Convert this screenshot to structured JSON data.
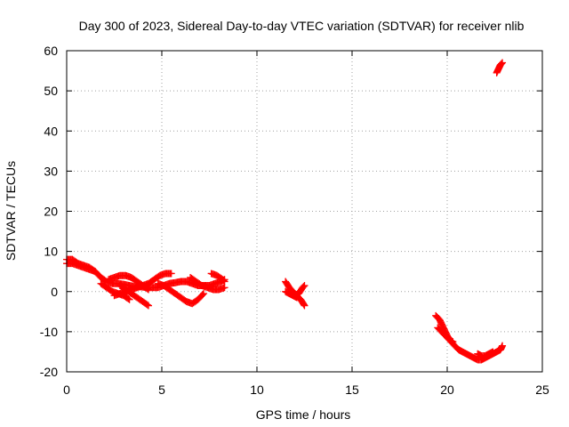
{
  "chart_data": {
    "type": "scatter",
    "title": "Day 300 of 2023, Sidereal Day-to-day VTEC variation (SDTVAR) for receiver nlib",
    "xlabel": "GPS time / hours",
    "ylabel": "SDTVAR / TECUs",
    "xlim": [
      0,
      25
    ],
    "ylim": [
      -20,
      60
    ],
    "xticks": [
      0,
      5,
      10,
      15,
      20,
      25
    ],
    "yticks": [
      -20,
      -10,
      0,
      10,
      20,
      30,
      40,
      50,
      60
    ],
    "grid": true,
    "marker": "+",
    "series": [
      {
        "name": "SDTVAR",
        "color": "#ff0000",
        "tracks": [
          {
            "x": [
              0.0,
              0.3,
              0.6,
              0.9,
              1.2,
              1.5,
              1.8,
              2.1,
              2.4,
              2.7,
              3.0,
              3.3,
              3.6,
              3.9,
              4.2,
              4.5,
              4.8,
              5.1,
              5.4,
              5.7,
              6.0,
              6.3,
              6.6,
              6.9,
              7.2,
              7.5,
              7.8,
              8.1,
              8.3
            ],
            "y": [
              8,
              8,
              7,
              6.5,
              6,
              5,
              3.5,
              2.5,
              2,
              2,
              1.8,
              1.5,
              1.2,
              1.2,
              1,
              1,
              1,
              1.5,
              2,
              2.2,
              2.5,
              2.5,
              2,
              1.5,
              1.5,
              1.5,
              2,
              2.5,
              3
            ]
          },
          {
            "x": [
              0.0,
              0.3,
              0.6,
              0.9,
              1.2,
              1.5
            ],
            "y": [
              7,
              7,
              6.5,
              6,
              5.5,
              5
            ]
          },
          {
            "x": [
              1.8,
              2.1,
              2.4,
              2.7,
              3.0,
              3.3
            ],
            "y": [
              2,
              1,
              0,
              -0.5,
              -1,
              -2
            ]
          },
          {
            "x": [
              2.2,
              2.5,
              2.8,
              3.1,
              3.4,
              3.7,
              4.0,
              4.3
            ],
            "y": [
              3,
              3.5,
              4,
              4,
              3.5,
              2.5,
              1.5,
              0.5
            ]
          },
          {
            "x": [
              2.5,
              2.8,
              3.1,
              3.4,
              3.7,
              4.0,
              4.3,
              4.6,
              4.9,
              5.2,
              5.5
            ],
            "y": [
              -1,
              -0.5,
              0,
              0.5,
              1,
              1.5,
              2,
              3,
              4,
              4.5,
              4.5
            ]
          },
          {
            "x": [
              2.8,
              3.1,
              3.4,
              3.7,
              4.0,
              4.3
            ],
            "y": [
              1.5,
              0.5,
              -0.5,
              -1.5,
              -2.5,
              -3.5
            ]
          },
          {
            "x": [
              4.8,
              5.1,
              5.4,
              5.7,
              6.0,
              6.3,
              6.6,
              6.9,
              7.2
            ],
            "y": [
              2,
              1.5,
              0.5,
              -0.5,
              -1.5,
              -2.5,
              -3,
              -2,
              -0.5
            ]
          },
          {
            "x": [
              6.5,
              6.8,
              7.1,
              7.4,
              7.7,
              8.0,
              8.3
            ],
            "y": [
              3.5,
              2.5,
              1.5,
              1,
              0.5,
              0.5,
              1
            ]
          },
          {
            "x": [
              7.6,
              7.9,
              8.2,
              8.3
            ],
            "y": [
              4.5,
              4,
              3,
              2.5
            ]
          },
          {
            "x": [
              11.5,
              11.7,
              11.9,
              12.1,
              12.3,
              12.5
            ],
            "y": [
              2.5,
              1,
              0,
              -1,
              -2,
              -3.5
            ]
          },
          {
            "x": [
              11.5,
              11.7,
              11.9,
              12.1
            ],
            "y": [
              0,
              -0.5,
              -1,
              -1.5
            ]
          },
          {
            "x": [
              12.0,
              12.2,
              12.4,
              12.5
            ],
            "y": [
              -1,
              -0.5,
              1,
              1.5
            ]
          },
          {
            "x": [
              19.4,
              19.6,
              19.8,
              20.0,
              20.2,
              20.4,
              20.6,
              20.8,
              21.0,
              21.2,
              21.4,
              21.6,
              21.8,
              22.0,
              22.2,
              22.4,
              22.6,
              22.8,
              22.9
            ],
            "y": [
              -6,
              -7,
              -9,
              -11,
              -12.5,
              -13.5,
              -14.5,
              -15,
              -15.5,
              -16,
              -16.5,
              -17,
              -17,
              -16.5,
              -16,
              -15.5,
              -15,
              -14.5,
              -13.5
            ]
          },
          {
            "x": [
              19.5,
              19.7,
              19.9,
              20.1,
              20.3
            ],
            "y": [
              -9,
              -10,
              -11,
              -12,
              -12.5
            ]
          },
          {
            "x": [
              21.6,
              21.8,
              22.0,
              22.2,
              22.4
            ],
            "y": [
              -15.5,
              -16,
              -16,
              -15.5,
              -15
            ]
          },
          {
            "x": [
              22.6,
              22.7,
              22.8,
              22.9
            ],
            "y": [
              54.5,
              55.5,
              56.5,
              57
            ]
          }
        ]
      }
    ]
  }
}
